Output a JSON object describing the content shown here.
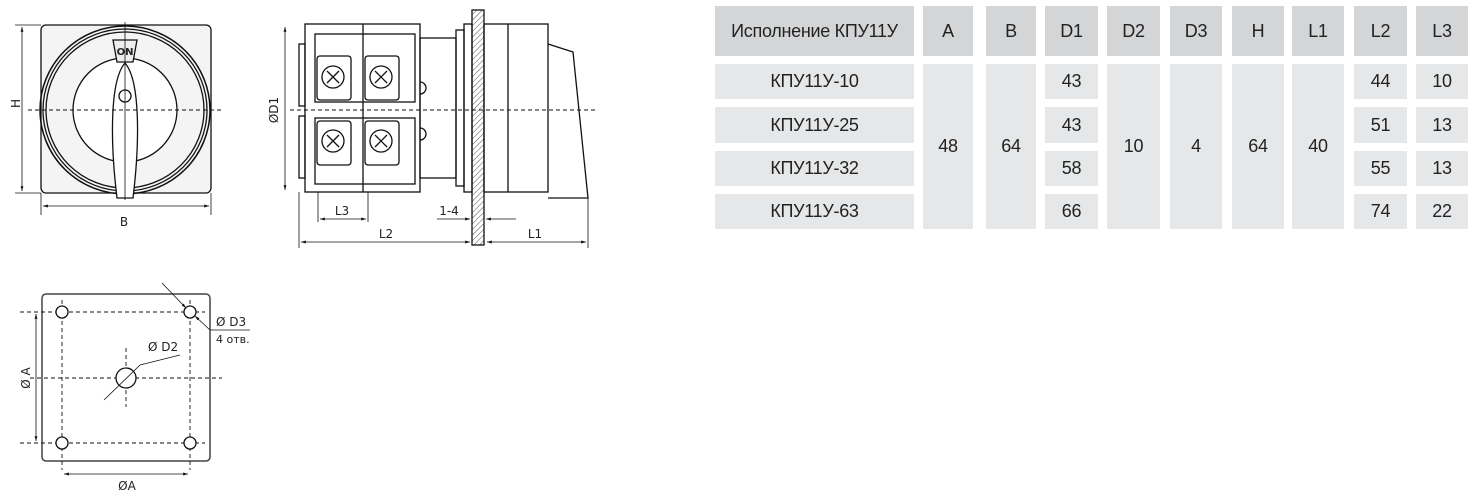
{
  "drawing": {
    "front_view": {
      "handle_label": "ON",
      "height_label": "H",
      "width_label": "B"
    },
    "side_view": {
      "diameter_label": "ØD1",
      "l3_label": "L3",
      "panel_thickness_label": "1-4",
      "l2_label": "L2",
      "l1_label": "L1"
    },
    "mounting_view": {
      "hole_spacing_v_label": "Ø A",
      "hole_spacing_h_label": "ØA",
      "center_hole_label": "Ø D2",
      "mount_hole_label": "Ø D3",
      "mount_hole_count": "4 отв."
    }
  },
  "table": {
    "headers": [
      "Исполнение КПУ11У",
      "A",
      "B",
      "D1",
      "D2",
      "D3",
      "H",
      "L1",
      "L2",
      "L3"
    ],
    "models": [
      "КПУ11У-10",
      "КПУ11У-25",
      "КПУ11У-32",
      "КПУ11У-63"
    ],
    "shared": {
      "A": "48",
      "B": "64",
      "D2": "10",
      "D3": "4",
      "H": "64",
      "L1": "40"
    },
    "D1": [
      "43",
      "43",
      "58",
      "66"
    ],
    "L2": [
      "44",
      "51",
      "55",
      "74"
    ],
    "L3": [
      "10",
      "13",
      "13",
      "22"
    ],
    "colors": {
      "header_bg": "#d4d5d7",
      "body_bg": "#e6e7e8"
    }
  }
}
